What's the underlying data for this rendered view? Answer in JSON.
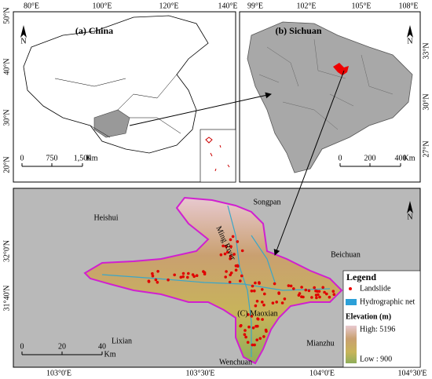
{
  "panel_a": {
    "title": "(a) China",
    "north": "N",
    "lon_ticks": [
      "80°E",
      "100°E",
      "120°E",
      "140°E"
    ],
    "lat_ticks": [
      "50°N",
      "40°N",
      "30°N",
      "20°N"
    ],
    "scale": [
      "0",
      "750",
      "1,500",
      "Km"
    ]
  },
  "panel_b": {
    "title": "(b) Sichuan",
    "north": "N",
    "lon_ticks": [
      "99°E",
      "102°E",
      "105°E",
      "108°E"
    ],
    "lat_ticks": [
      "33°N",
      "30°N",
      "27°N"
    ],
    "scale": [
      "0",
      "200",
      "400",
      "Km"
    ]
  },
  "panel_c": {
    "north": "N",
    "places": [
      "Heishui",
      "Songpan",
      "Ming River",
      "Beichuan",
      "(C) Maoxian",
      "Lixian",
      "Wenchuan",
      "Mianzhu"
    ],
    "lon_ticks": [
      "103°0'E",
      "103°30'E",
      "104°0'E",
      "104°30'E"
    ],
    "lat_ticks": [
      "32°0'N",
      "31°40'N"
    ],
    "scale": [
      "0",
      "20",
      "40",
      "Km"
    ],
    "legend": {
      "title": "Legend",
      "landslide": "Landslide",
      "hydro": "Hydrographic net",
      "elevation": "Elevation (m)",
      "high": "High: 5196",
      "low": "Low : 900"
    }
  }
}
